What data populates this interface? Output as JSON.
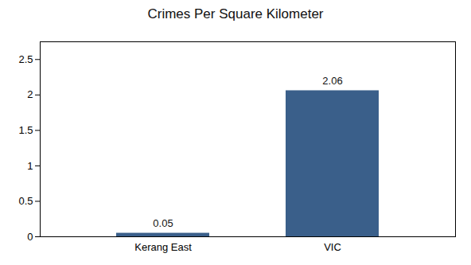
{
  "chart_data": {
    "type": "bar",
    "title": "Crimes Per Square Kilometer",
    "categories": [
      "Kerang East",
      "VIC"
    ],
    "values": [
      0.05,
      2.06
    ],
    "color": "#3a5f8a",
    "ylim": [
      0,
      2.75
    ],
    "yticks": [
      0,
      0.5,
      1.0,
      1.5,
      2.0,
      2.5
    ],
    "grid": false,
    "data_labels": true
  }
}
